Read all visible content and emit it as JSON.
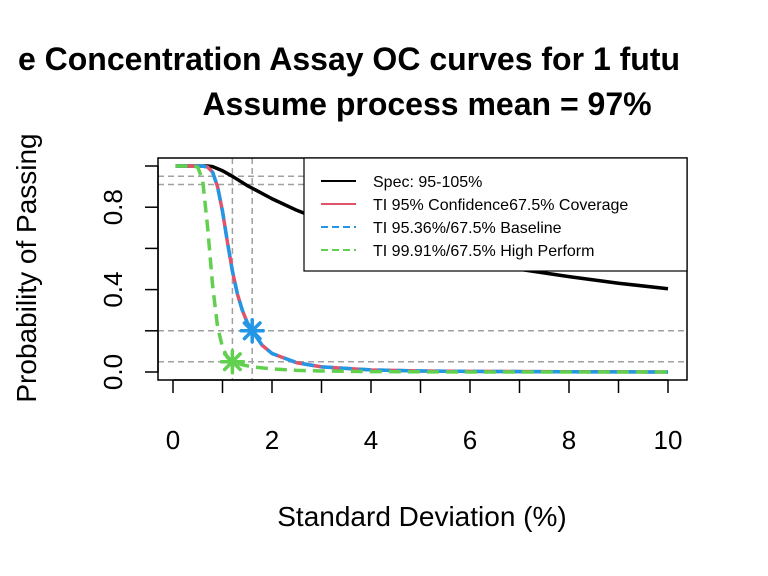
{
  "chart_data": {
    "type": "line",
    "title": "e Concentration Assay OC curves for 1 futu",
    "subtitle": "Assume process mean = 97%",
    "xlabel": "Standard Deviation (%)",
    "ylabel": "Probability of Passing",
    "xlim": [
      0,
      10
    ],
    "ylim": [
      0,
      1
    ],
    "x_ticks": [
      "0",
      "2",
      "4",
      "6",
      "8",
      "10"
    ],
    "y_ticks": [
      "0.0",
      "0.4",
      "0.8"
    ],
    "legend_position": "top-right",
    "reference_lines": {
      "vertical": [
        1.2,
        1.6
      ],
      "horizontal": [
        0.05,
        0.2,
        0.91,
        0.95
      ]
    },
    "markers": [
      {
        "x": 1.6,
        "y": 0.2,
        "color": "#2297e6"
      },
      {
        "x": 1.2,
        "y": 0.05,
        "color": "#61d04f"
      }
    ],
    "series": [
      {
        "name": "Spec: 95-105%",
        "color": "#000000",
        "dash": "solid",
        "x": [
          0.05,
          0.5,
          0.7,
          0.8,
          1.0,
          1.2,
          1.5,
          2.0,
          2.5,
          3.0,
          4.0,
          5.0,
          6.0,
          7.0,
          8.0,
          9.0,
          10.0
        ],
        "y": [
          1.0,
          1.0,
          1.0,
          0.997,
          0.977,
          0.95,
          0.905,
          0.841,
          0.785,
          0.737,
          0.657,
          0.594,
          0.542,
          0.499,
          0.463,
          0.431,
          0.404
        ]
      },
      {
        "name": "TI 95% Confidence67.5% Coverage",
        "color": "#df536b",
        "dash": "solid",
        "x": [
          0.05,
          0.5,
          0.6,
          0.7,
          0.8,
          0.9,
          1.0,
          1.1,
          1.2,
          1.3,
          1.4,
          1.5,
          1.6,
          1.8,
          2.0,
          2.5,
          3.0,
          4.0,
          5.0,
          6.0,
          8.0,
          10.0
        ],
        "y": [
          1.0,
          1.0,
          0.999,
          0.995,
          0.97,
          0.9,
          0.78,
          0.63,
          0.49,
          0.38,
          0.3,
          0.24,
          0.2,
          0.13,
          0.09,
          0.045,
          0.025,
          0.01,
          0.005,
          0.003,
          0.001,
          0.0
        ]
      },
      {
        "name": "TI 95.36%/67.5% Baseline",
        "color": "#2297e6",
        "dash": "dashed",
        "x": [
          0.05,
          0.5,
          0.6,
          0.7,
          0.8,
          0.9,
          1.0,
          1.1,
          1.2,
          1.3,
          1.4,
          1.5,
          1.6,
          1.8,
          2.0,
          2.5,
          3.0,
          4.0,
          5.0,
          6.0,
          8.0,
          10.0
        ],
        "y": [
          1.0,
          1.0,
          0.999,
          0.995,
          0.97,
          0.9,
          0.78,
          0.63,
          0.49,
          0.38,
          0.3,
          0.24,
          0.2,
          0.13,
          0.09,
          0.045,
          0.025,
          0.01,
          0.005,
          0.003,
          0.001,
          0.0
        ]
      },
      {
        "name": "TI 99.91%/67.5% High Perform",
        "color": "#61d04f",
        "dash": "dashed",
        "x": [
          0.05,
          0.4,
          0.5,
          0.6,
          0.7,
          0.8,
          0.9,
          1.0,
          1.1,
          1.2,
          1.4,
          1.6,
          2.0,
          2.5,
          3.0,
          4.0,
          6.0,
          8.0,
          10.0
        ],
        "y": [
          1.0,
          1.0,
          0.995,
          0.93,
          0.7,
          0.42,
          0.22,
          0.12,
          0.07,
          0.05,
          0.035,
          0.025,
          0.015,
          0.008,
          0.005,
          0.002,
          0.0,
          0.0,
          0.0
        ]
      }
    ]
  }
}
